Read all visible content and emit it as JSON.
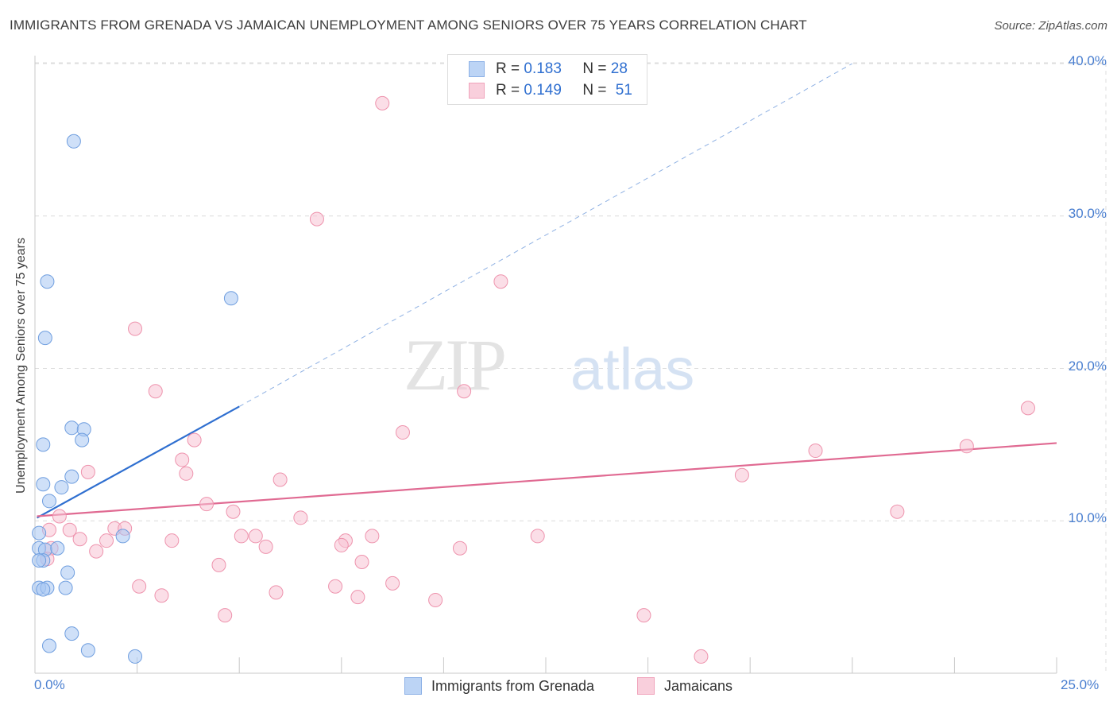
{
  "title": "IMMIGRANTS FROM GRENADA VS JAMAICAN UNEMPLOYMENT AMONG SENIORS OVER 75 YEARS CORRELATION CHART",
  "source": "Source: ZipAtlas.com",
  "watermark": {
    "zip": "ZIP",
    "atlas": "atlas"
  },
  "legend": {
    "r_label": "R =",
    "n_label": "N =",
    "series": [
      {
        "r": "0.183",
        "n": "28"
      },
      {
        "r": "0.149",
        "n": "51"
      }
    ]
  },
  "chart_data": {
    "type": "scatter",
    "title": "IMMIGRANTS FROM GRENADA VS JAMAICAN UNEMPLOYMENT AMONG SENIORS OVER 75 YEARS CORRELATION CHART",
    "xlabel": "",
    "ylabel": "Unemployment Among Seniors over 75 years",
    "xlim": [
      0,
      25
    ],
    "ylim": [
      0,
      41
    ],
    "x_ticks": [
      "0.0%",
      "25.0%"
    ],
    "y_ticks": [
      {
        "value": 10,
        "label": "10.0%"
      },
      {
        "value": 20,
        "label": "20.0%"
      },
      {
        "value": 30,
        "label": "30.0%"
      },
      {
        "value": 40,
        "label": "40.0%"
      }
    ],
    "grid": true,
    "series": [
      {
        "name": "Immigrants from Grenada",
        "color": "#a7c6f2",
        "stroke": "#6f9edf",
        "trend_color": "#2f6fd0",
        "trend": {
          "x0": 0.05,
          "y0": 10.2,
          "x1": 5.0,
          "y1": 17.5,
          "dash_to_x": 20.0,
          "dash_to_y": 40.0
        },
        "points": [
          [
            0.95,
            34.9
          ],
          [
            0.3,
            25.7
          ],
          [
            4.8,
            24.6
          ],
          [
            0.25,
            22.0
          ],
          [
            0.9,
            16.1
          ],
          [
            1.2,
            16.0
          ],
          [
            0.2,
            15.0
          ],
          [
            1.15,
            15.3
          ],
          [
            0.9,
            12.9
          ],
          [
            0.65,
            12.2
          ],
          [
            0.2,
            12.4
          ],
          [
            0.35,
            11.3
          ],
          [
            0.1,
            9.2
          ],
          [
            2.15,
            9.0
          ],
          [
            0.1,
            8.2
          ],
          [
            0.25,
            8.1
          ],
          [
            0.55,
            8.2
          ],
          [
            0.2,
            7.4
          ],
          [
            0.1,
            7.4
          ],
          [
            0.8,
            6.6
          ],
          [
            0.1,
            5.6
          ],
          [
            0.3,
            5.6
          ],
          [
            0.75,
            5.6
          ],
          [
            0.2,
            5.5
          ],
          [
            0.9,
            2.6
          ],
          [
            0.35,
            1.8
          ],
          [
            1.3,
            1.5
          ],
          [
            2.45,
            1.1
          ]
        ]
      },
      {
        "name": "Jamaicans",
        "color": "#f8c3d3",
        "stroke": "#ee93ad",
        "trend_color": "#e06a92",
        "trend": {
          "x0": 0.05,
          "y0": 10.3,
          "x1": 25.0,
          "y1": 15.1
        },
        "points": [
          [
            8.5,
            37.4
          ],
          [
            6.9,
            29.8
          ],
          [
            11.4,
            25.7
          ],
          [
            2.45,
            22.6
          ],
          [
            2.95,
            18.5
          ],
          [
            10.5,
            18.5
          ],
          [
            24.3,
            17.4
          ],
          [
            9.0,
            15.8
          ],
          [
            3.9,
            15.3
          ],
          [
            19.1,
            14.6
          ],
          [
            22.8,
            14.9
          ],
          [
            3.6,
            14.0
          ],
          [
            1.3,
            13.2
          ],
          [
            3.7,
            13.1
          ],
          [
            17.3,
            13.0
          ],
          [
            6.0,
            12.7
          ],
          [
            4.2,
            11.1
          ],
          [
            21.1,
            10.6
          ],
          [
            4.85,
            10.6
          ],
          [
            0.6,
            10.3
          ],
          [
            6.5,
            10.2
          ],
          [
            0.35,
            9.4
          ],
          [
            0.85,
            9.4
          ],
          [
            1.95,
            9.5
          ],
          [
            2.2,
            9.5
          ],
          [
            5.05,
            9.0
          ],
          [
            5.4,
            9.0
          ],
          [
            8.25,
            9.0
          ],
          [
            12.3,
            9.0
          ],
          [
            1.1,
            8.8
          ],
          [
            1.75,
            8.7
          ],
          [
            3.35,
            8.7
          ],
          [
            7.6,
            8.7
          ],
          [
            7.5,
            8.4
          ],
          [
            5.65,
            8.3
          ],
          [
            0.4,
            8.2
          ],
          [
            10.4,
            8.2
          ],
          [
            1.5,
            8.0
          ],
          [
            0.3,
            7.5
          ],
          [
            8.0,
            7.3
          ],
          [
            4.5,
            7.1
          ],
          [
            2.55,
            5.7
          ],
          [
            7.35,
            5.7
          ],
          [
            8.75,
            5.9
          ],
          [
            5.9,
            5.3
          ],
          [
            3.1,
            5.1
          ],
          [
            7.9,
            5.0
          ],
          [
            9.8,
            4.8
          ],
          [
            4.65,
            3.8
          ],
          [
            14.9,
            3.8
          ],
          [
            16.3,
            1.1
          ]
        ]
      }
    ]
  }
}
